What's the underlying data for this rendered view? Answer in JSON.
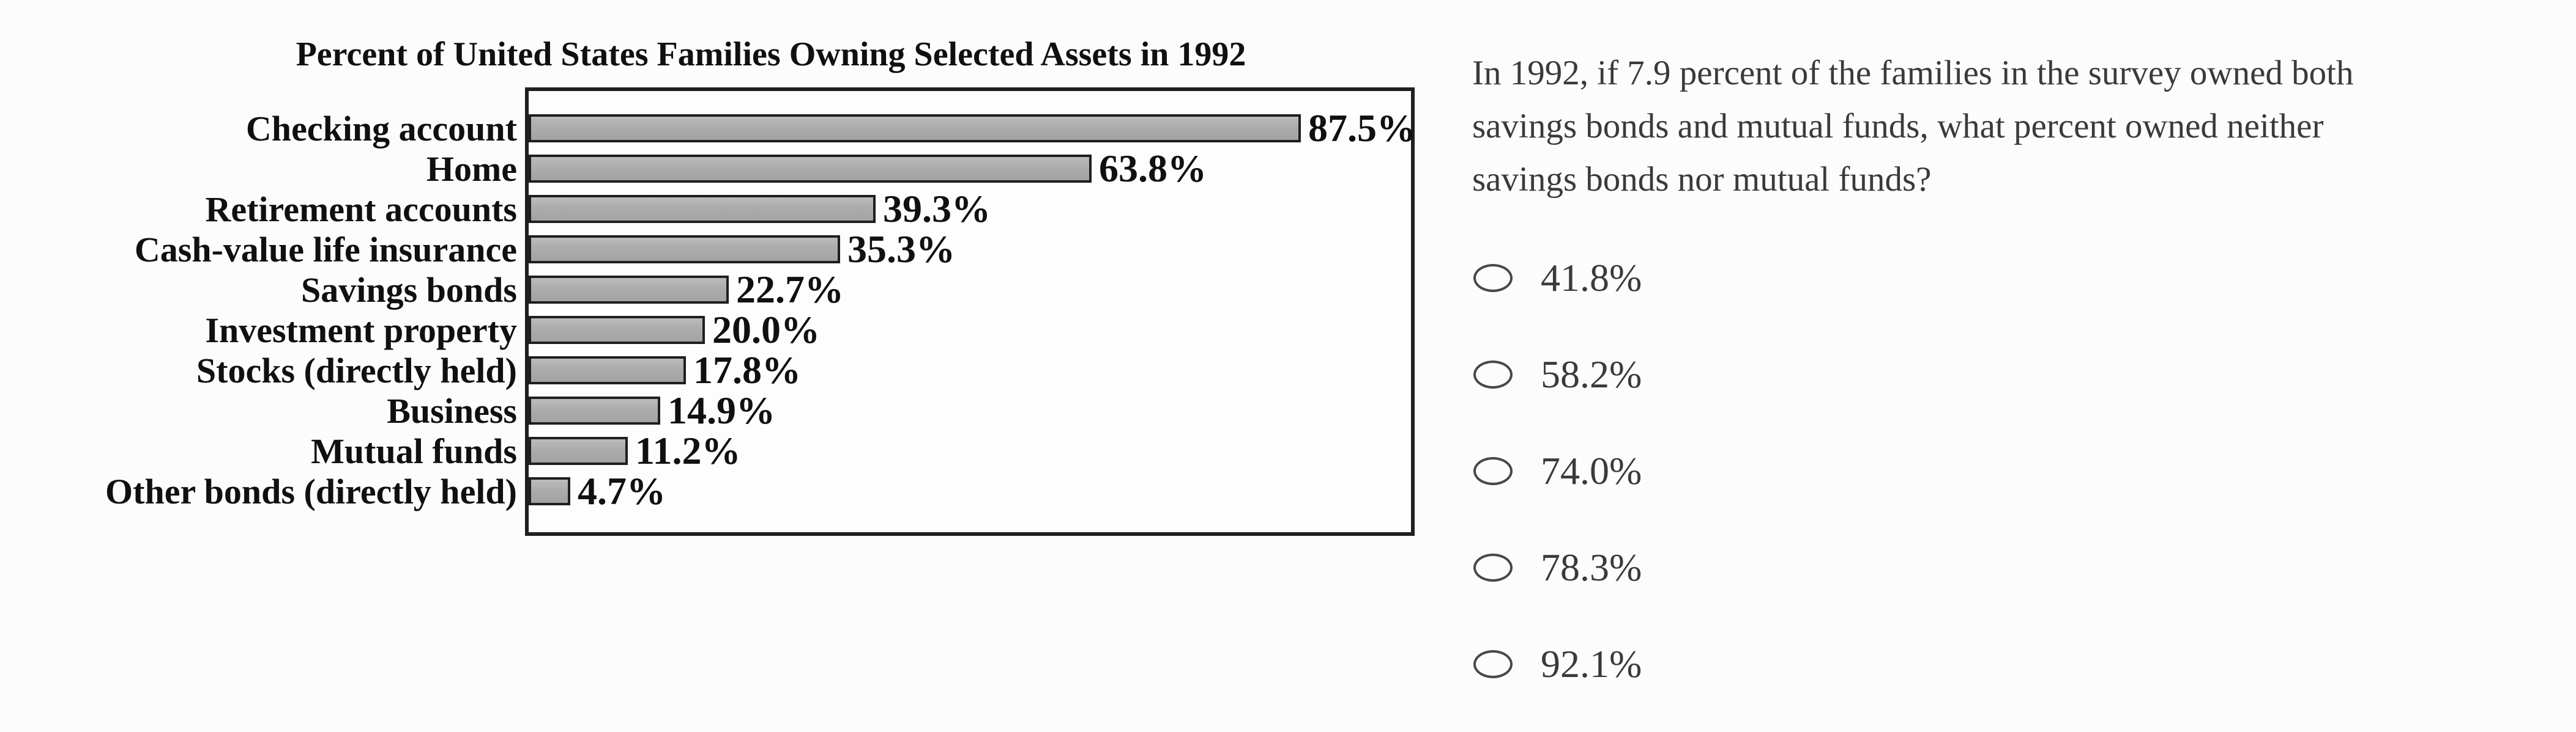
{
  "chart_data": {
    "type": "bar",
    "orientation": "horizontal",
    "title": "Percent of United States Families Owning Selected Assets in 1992",
    "categories": [
      "Checking account",
      "Home",
      "Retirement accounts",
      "Cash-value life insurance",
      "Savings bonds",
      "Investment property",
      "Stocks (directly held)",
      "Business",
      "Mutual funds",
      "Other bonds (directly held)"
    ],
    "values": [
      87.5,
      63.8,
      39.3,
      35.3,
      22.7,
      20.0,
      17.8,
      14.9,
      11.2,
      4.7
    ],
    "value_labels": [
      "87.5%",
      "63.8%",
      "39.3%",
      "35.3%",
      "22.7%",
      "20.0%",
      "17.8%",
      "14.9%",
      "11.2%",
      "4.7%"
    ],
    "xlim": [
      0,
      100
    ],
    "grid": false,
    "legend": "none",
    "bar_color": "#ababab",
    "bar_border_color": "#1f1f1f",
    "plot_border_color": "#1f1f1f"
  },
  "question": {
    "lines": [
      "In 1992, if 7.9 percent of the families in the survey owned both",
      "savings bonds and mutual funds, what percent owned neither",
      "savings bonds nor mutual funds?"
    ]
  },
  "options": [
    {
      "label": "41.8%",
      "selected": false
    },
    {
      "label": "58.2%",
      "selected": false
    },
    {
      "label": "74.0%",
      "selected": false
    },
    {
      "label": "78.3%",
      "selected": false
    },
    {
      "label": "92.1%",
      "selected": false
    }
  ]
}
